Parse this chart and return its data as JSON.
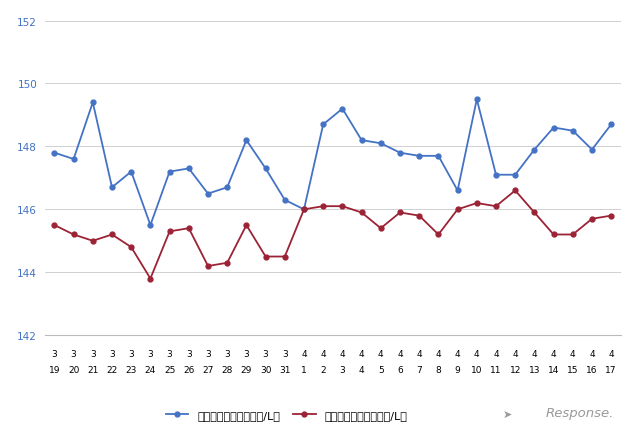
{
  "x_labels_row1": [
    "3",
    "3",
    "3",
    "3",
    "3",
    "3",
    "3",
    "3",
    "3",
    "3",
    "3",
    "3",
    "3",
    "4",
    "4",
    "4",
    "4",
    "4",
    "4",
    "4",
    "4",
    "4",
    "4",
    "4",
    "4",
    "4",
    "4",
    "4",
    "4",
    "4"
  ],
  "x_labels_row2": [
    "19",
    "20",
    "21",
    "22",
    "23",
    "24",
    "25",
    "26",
    "27",
    "28",
    "29",
    "30",
    "31",
    "1",
    "2",
    "3",
    "4",
    "5",
    "6",
    "7",
    "8",
    "9",
    "10",
    "11",
    "12",
    "13",
    "14",
    "15",
    "16",
    "17"
  ],
  "blue_values": [
    147.8,
    147.6,
    149.4,
    146.7,
    147.2,
    145.5,
    147.2,
    147.3,
    146.5,
    146.7,
    148.2,
    147.3,
    146.3,
    146.0,
    148.7,
    149.2,
    148.2,
    148.1,
    147.8,
    147.7,
    147.7,
    146.6,
    149.5,
    147.1,
    147.1,
    147.9,
    148.6,
    148.5,
    147.9,
    148.7
  ],
  "red_values": [
    145.5,
    145.2,
    145.0,
    145.2,
    144.8,
    143.8,
    145.3,
    145.4,
    144.2,
    144.3,
    145.5,
    144.5,
    144.5,
    146.0,
    146.1,
    146.1,
    145.9,
    145.4,
    145.9,
    145.8,
    145.2,
    146.0,
    146.2,
    146.1,
    146.6,
    145.9,
    145.2,
    145.2,
    145.7,
    145.8
  ],
  "ylim": [
    142,
    152
  ],
  "yticks": [
    142,
    144,
    146,
    148,
    150,
    152
  ],
  "blue_color": "#4472c4",
  "red_color": "#9b2335",
  "blue_label": "ハイオク看板価格（円/L）",
  "red_label": "ハイオク実売価格（円/L）",
  "background_color": "#ffffff",
  "grid_color": "#d0d0d0",
  "n_points": 30
}
